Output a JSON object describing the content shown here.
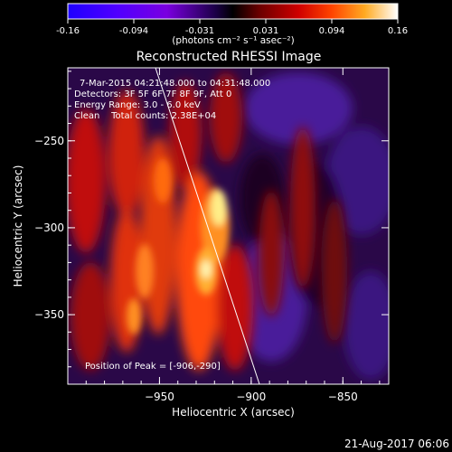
{
  "colorbar": {
    "tick_labels": [
      "-0.16",
      "-0.094",
      "-0.031",
      "0.031",
      "0.094",
      "0.16"
    ],
    "units_label": "(photons cm⁻² s⁻¹ asec⁻²)",
    "colors": [
      "#1e00ff",
      "#5000ff",
      "#7a00e0",
      "#1a0044",
      "#000000",
      "#4a0000",
      "#b00000",
      "#ff3300",
      "#ff8800",
      "#ffee66",
      "#ffffff"
    ]
  },
  "image": {
    "title": "Reconstructed RHESSI Image",
    "info_lines": [
      "7-Mar-2015 04:21:48.000 to 04:31:48.000",
      "Detectors: 3F 5F 6F 7F 8F 9F, Att 0",
      "Energy Range: 3.0 - 6.0 keV",
      "Clean    Total counts: 2.38E+04"
    ],
    "peak_label": "Position of Peak = [-906,-290]",
    "x_axis": {
      "label": "Heliocentric X (arcsec)",
      "tick_labels": [
        "-950",
        "-900",
        "-850"
      ],
      "range": [
        -1000,
        -825
      ]
    },
    "y_axis": {
      "label": "Heliocentric Y (arcsec)",
      "tick_labels": [
        "-250",
        "-300",
        "-350"
      ],
      "range": [
        -390,
        -208
      ]
    },
    "peak": {
      "x": -906,
      "y": -290
    }
  },
  "footer": {
    "timestamp": "21-Aug-2017 06:06"
  }
}
